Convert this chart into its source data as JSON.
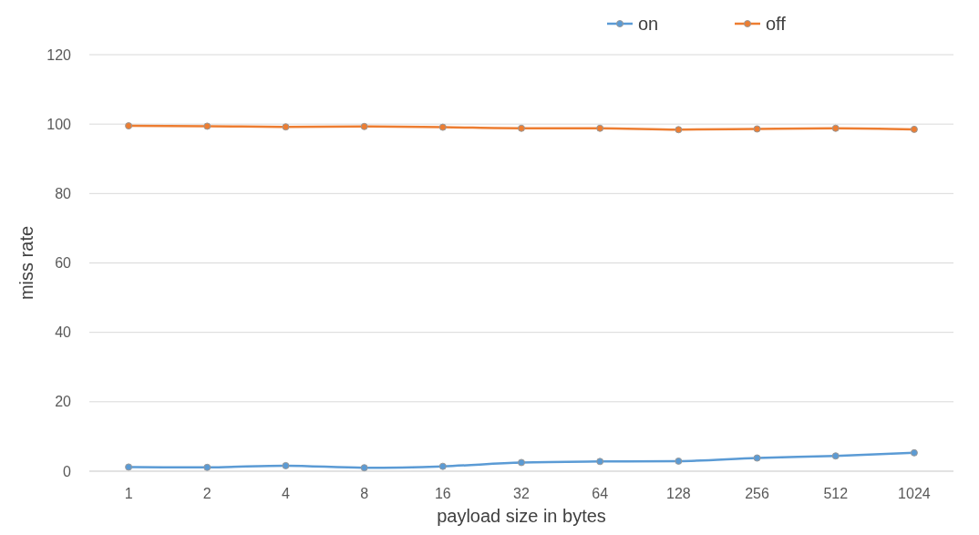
{
  "chart_data": {
    "type": "line",
    "xlabel": "payload size in bytes",
    "ylabel": "miss rate",
    "categories": [
      "1",
      "2",
      "4",
      "8",
      "16",
      "32",
      "64",
      "128",
      "256",
      "512",
      "1024"
    ],
    "series": [
      {
        "name": "on",
        "color": "#5b9bd5",
        "values": [
          1.2,
          1.1,
          1.6,
          1.0,
          1.4,
          2.5,
          2.8,
          2.9,
          3.8,
          4.4,
          5.3
        ]
      },
      {
        "name": "off",
        "color": "#ed7d31",
        "values": [
          99.5,
          99.4,
          99.2,
          99.3,
          99.1,
          98.8,
          98.8,
          98.4,
          98.6,
          98.8,
          98.5
        ]
      }
    ],
    "ylim": [
      0,
      120
    ],
    "yticks": [
      0,
      20,
      40,
      60,
      80,
      100,
      120
    ],
    "grid": "y",
    "legend": "top right",
    "marker": "circle",
    "line_style": "solid"
  }
}
